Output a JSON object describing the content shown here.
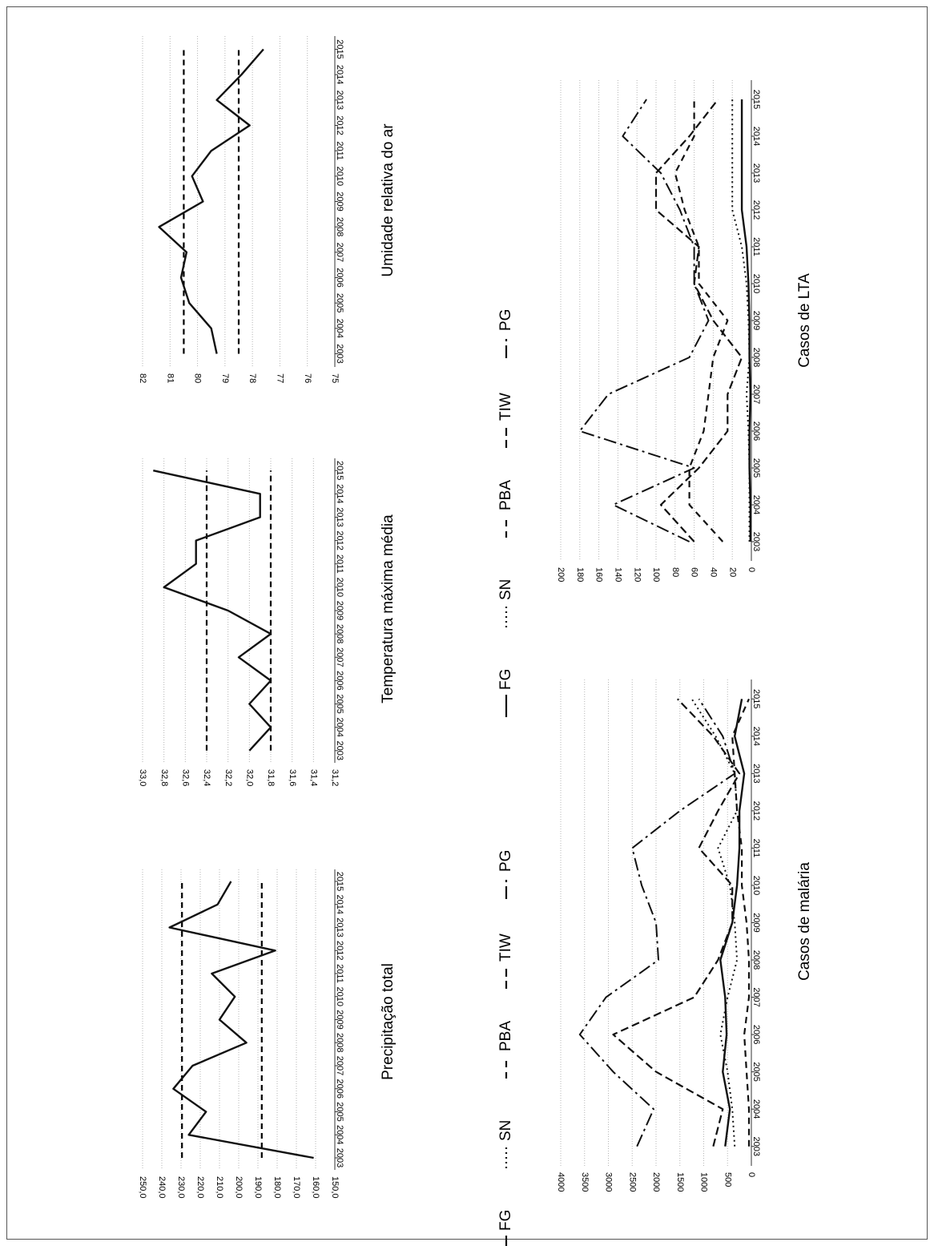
{
  "chart_data": [
    {
      "type": "line",
      "title": "Precipitação total",
      "categories": [
        "2003",
        "2004",
        "2005",
        "2006",
        "2007",
        "2008",
        "2009",
        "2010",
        "2011",
        "2012",
        "2013",
        "2014",
        "2015"
      ],
      "ylim": [
        150,
        250
      ],
      "yticks": [
        "150,0",
        "160,0",
        "170,0",
        "180,0",
        "190,0",
        "200,0",
        "210,0",
        "220,0",
        "230,0",
        "240,0",
        "250,0"
      ],
      "series": [
        {
          "values": [
            161,
            226,
            217,
            234,
            224,
            196,
            210,
            202,
            214,
            181,
            236,
            211,
            204
          ]
        }
      ],
      "reference_lines": [
        229.5,
        188
      ]
    },
    {
      "type": "line",
      "title": "Temperatura máxima média",
      "categories": [
        "2003",
        "2004",
        "2005",
        "2006",
        "2007",
        "2008",
        "2009",
        "2010",
        "2011",
        "2012",
        "2013",
        "2014",
        "2015"
      ],
      "ylim": [
        31.2,
        33.0
      ],
      "yticks": [
        "31,2",
        "31,4",
        "31,6",
        "31,8",
        "32,0",
        "32,2",
        "32,4",
        "32,6",
        "32,8",
        "33,0"
      ],
      "series": [
        {
          "values": [
            32.0,
            31.8,
            32.0,
            31.8,
            32.1,
            31.8,
            32.2,
            32.8,
            32.5,
            32.5,
            31.9,
            31.9,
            32.9
          ]
        }
      ],
      "reference_lines": [
        32.4,
        31.8
      ]
    },
    {
      "type": "line",
      "title": "Umidade relativa do ar",
      "categories": [
        "2003",
        "2004",
        "2005",
        "2006",
        "2007",
        "2008",
        "2009",
        "2010",
        "2011",
        "2012",
        "2013",
        "2014",
        "2015"
      ],
      "ylim": [
        75,
        82
      ],
      "yticks": [
        "75",
        "76",
        "77",
        "78",
        "79",
        "80",
        "81",
        "82"
      ],
      "series": [
        {
          "values": [
            79.3,
            79.5,
            80.3,
            80.6,
            80.4,
            81.4,
            79.8,
            80.2,
            79.5,
            78.1,
            79.3,
            78.4,
            77.6
          ]
        }
      ],
      "reference_lines": [
        80.5,
        78.5
      ]
    },
    {
      "type": "line",
      "title": "Casos de malária",
      "categories": [
        "2003",
        "2004",
        "2005",
        "2006",
        "2007",
        "2008",
        "2009",
        "2010",
        "2011",
        "2012",
        "2013",
        "2014",
        "2015"
      ],
      "ylim": [
        0,
        4000
      ],
      "yticks": [
        "0",
        "500",
        "1000",
        "1500",
        "2000",
        "2500",
        "3000",
        "3500",
        "4000"
      ],
      "legend": [
        "FG",
        "SN",
        "PBA",
        "TIW",
        "PG"
      ],
      "series": [
        {
          "name": "FG",
          "values": [
            550,
            450,
            600,
            520,
            550,
            650,
            400,
            300,
            250,
            250,
            150,
            350,
            200
          ]
        },
        {
          "name": "SN",
          "values": [
            350,
            400,
            500,
            650,
            500,
            300,
            350,
            450,
            700,
            300,
            350,
            750,
            1250
          ]
        },
        {
          "name": "PBA",
          "values": [
            50,
            50,
            100,
            150,
            50,
            50,
            100,
            200,
            200,
            300,
            350,
            400,
            50
          ]
        },
        {
          "name": "TIW",
          "values": [
            800,
            600,
            2000,
            2900,
            1200,
            700,
            400,
            400,
            1100,
            700,
            250,
            800,
            1550
          ]
        },
        {
          "name": "PG",
          "values": [
            2400,
            2050,
            2900,
            3600,
            3050,
            1950,
            2000,
            2300,
            2500,
            1500,
            350,
            600,
            1100
          ]
        }
      ]
    },
    {
      "type": "line",
      "title": "Casos de LTA",
      "categories": [
        "2003",
        "2004",
        "2005",
        "2006",
        "2007",
        "2008",
        "2009",
        "2010",
        "2011",
        "2012",
        "2013",
        "2014",
        "2015"
      ],
      "ylim": [
        0,
        200
      ],
      "yticks": [
        "0",
        "20",
        "40",
        "60",
        "80",
        "100",
        "120",
        "140",
        "160",
        "180",
        "200"
      ],
      "legend": [
        "FG",
        "SN",
        "PBA",
        "TIW",
        "PG"
      ],
      "series": [
        {
          "name": "FG",
          "values": [
            1,
            1,
            2,
            2,
            1,
            2,
            2,
            3,
            5,
            10,
            10,
            10,
            10
          ]
        },
        {
          "name": "SN",
          "values": [
            2,
            2,
            2,
            3,
            5,
            2,
            3,
            5,
            10,
            20,
            20,
            20,
            20
          ]
        },
        {
          "name": "PBA",
          "values": [
            30,
            65,
            65,
            50,
            45,
            40,
            25,
            55,
            55,
            70,
            80,
            60,
            60
          ]
        },
        {
          "name": "TIW",
          "values": [
            60,
            95,
            55,
            25,
            25,
            10,
            40,
            60,
            55,
            100,
            100,
            65,
            35
          ]
        },
        {
          "name": "PG",
          "values": [
            65,
            145,
            60,
            180,
            150,
            65,
            45,
            60,
            60,
            75,
            95,
            135,
            110
          ]
        }
      ]
    }
  ]
}
